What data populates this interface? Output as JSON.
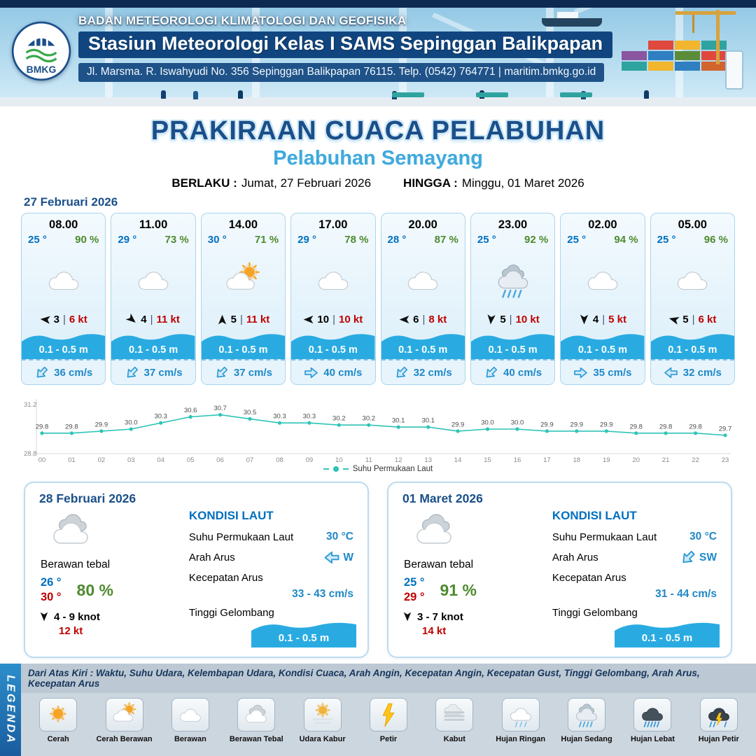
{
  "colors": {
    "dark_blue": "#1B4F8A",
    "light_blue": "#3FA9DC",
    "temp_blue": "#0070C0",
    "humidity_green": "#4E8A2E",
    "wind_red": "#C00000",
    "wave_blue": "#29ABE2",
    "chart_teal": "#2EC4B6"
  },
  "header": {
    "logo_text": "BMKG",
    "org_name": "BADAN METEOROLOGI KLIMATOLOGI DAN GEOFISIKA",
    "station_name": "Stasiun Meteorologi Kelas I SAMS Sepinggan Balikpapan",
    "address_line": "Jl. Marsma. R. Iswahyudi No. 356 Sepinggan Balikpapan 76115. Telp. (0542) 764771 | maritim.bmkg.go.id"
  },
  "title": {
    "main": "PRAKIRAAN CUACA PELABUHAN",
    "subtitle": "Pelabuhan Semayang",
    "berlaku_label": "BERLAKU :",
    "berlaku_value": "Jumat, 27 Februari 2026",
    "hingga_label": "HINGGA :",
    "hingga_value": "Minggu, 01 Maret 2026"
  },
  "day1": {
    "date": "27 Februari 2026",
    "hours": [
      {
        "time": "08.00",
        "temp": "25 °",
        "rh": "90 %",
        "icon": "berawan",
        "wind_deg": 185,
        "wind_num": "3",
        "wind_speed": "6 kt",
        "wave": "0.1 - 0.5 m",
        "cur_deg": 135,
        "cur": "36 cm/s"
      },
      {
        "time": "11.00",
        "temp": "29 °",
        "rh": "73 %",
        "icon": "berawan",
        "wind_deg": 40,
        "wind_num": "4",
        "wind_speed": "11 kt",
        "wave": "0.1 - 0.5 m",
        "cur_deg": 135,
        "cur": "37 cm/s"
      },
      {
        "time": "14.00",
        "temp": "30 °",
        "rh": "71 %",
        "icon": "cerah-berawan",
        "wind_deg": 270,
        "wind_num": "5",
        "wind_speed": "11 kt",
        "wave": "0.1 - 0.5 m",
        "cur_deg": 135,
        "cur": "37 cm/s"
      },
      {
        "time": "17.00",
        "temp": "29 °",
        "rh": "78 %",
        "icon": "berawan",
        "wind_deg": 180,
        "wind_num": "10",
        "wind_speed": "10 kt",
        "wave": "0.1 - 0.5 m",
        "cur_deg": 0,
        "cur": "40 cm/s"
      },
      {
        "time": "20.00",
        "temp": "28 °",
        "rh": "87 %",
        "icon": "berawan",
        "wind_deg": 180,
        "wind_num": "6",
        "wind_speed": "8 kt",
        "wave": "0.1 - 0.5 m",
        "cur_deg": 135,
        "cur": "32 cm/s"
      },
      {
        "time": "23.00",
        "temp": "25 °",
        "rh": "92 %",
        "icon": "hujan-sedang",
        "wind_deg": 95,
        "wind_num": "5",
        "wind_speed": "10 kt",
        "wave": "0.1 - 0.5 m",
        "cur_deg": 135,
        "cur": "40 cm/s"
      },
      {
        "time": "02.00",
        "temp": "25 °",
        "rh": "94 %",
        "icon": "berawan",
        "wind_deg": 90,
        "wind_num": "4",
        "wind_speed": "5 kt",
        "wave": "0.1 - 0.5 m",
        "cur_deg": 0,
        "cur": "35 cm/s"
      },
      {
        "time": "05.00",
        "temp": "25 °",
        "rh": "96 %",
        "icon": "berawan",
        "wind_deg": 195,
        "wind_num": "5",
        "wind_speed": "6 kt",
        "wave": "0.1 - 0.5 m",
        "cur_deg": 180,
        "cur": "32 cm/s"
      }
    ]
  },
  "chart_data": {
    "type": "line",
    "x": [
      "00",
      "01",
      "02",
      "03",
      "04",
      "05",
      "06",
      "07",
      "08",
      "09",
      "10",
      "11",
      "12",
      "13",
      "14",
      "15",
      "16",
      "17",
      "18",
      "19",
      "20",
      "21",
      "22",
      "23"
    ],
    "values": [
      29.8,
      29.8,
      29.9,
      30.0,
      30.3,
      30.6,
      30.7,
      30.5,
      30.3,
      30.3,
      30.2,
      30.2,
      30.1,
      30.1,
      29.9,
      30.0,
      30.0,
      29.9,
      29.9,
      29.9,
      29.8,
      29.8,
      29.8,
      29.7
    ],
    "ylim": [
      28.8,
      31.2
    ],
    "series_name": "Suhu Permukaan Laut",
    "line_color": "#2EC4B6",
    "legend_position": "bottom",
    "grid": false
  },
  "day_summaries": [
    {
      "date": "28 Februari 2026",
      "icon": "berawan-tebal",
      "condition": "Berawan tebal",
      "temp_min": "26 °",
      "temp_max": "30 °",
      "rh": "80 %",
      "wind_deg": 90,
      "wind_range": "4  - 9 knot",
      "gust": "12 kt",
      "sea": {
        "heading": "KONDISI LAUT",
        "sst_label": "Suhu Permukaan Laut",
        "sst": "30 °C",
        "dir_label": "Arah Arus",
        "dir": "W",
        "dir_deg": 180,
        "speed_label": "Kecepatan Arus",
        "speed": "33  - 43 cm/s",
        "wave_label": "Tinggi Gelombang",
        "wave": "0.1 - 0.5 m"
      }
    },
    {
      "date": "01 Maret 2026",
      "icon": "berawan-tebal",
      "condition": "Berawan tebal",
      "temp_min": "25 °",
      "temp_max": "29 °",
      "rh": "91 %",
      "wind_deg": 90,
      "wind_range": "3  - 7 knot",
      "gust": "14 kt",
      "sea": {
        "heading": "KONDISI LAUT",
        "sst_label": "Suhu Permukaan Laut",
        "sst": "30 °C",
        "dir_label": "Arah Arus",
        "dir": "SW",
        "dir_deg": 135,
        "speed_label": "Kecepatan Arus",
        "speed": "31  - 44 cm/s",
        "wave_label": "Tinggi Gelombang",
        "wave": "0.1 - 0.5 m"
      }
    }
  ],
  "legend": {
    "band_text": "LEGENDA",
    "note": "Dari Atas Kiri : Waktu, Suhu Udara, Kelembapan Udara, Kondisi Cuaca, Arah Angin, Kecepatan Angin, Kecepatan Gust, Tinggi Gelombang, Arah Arus, Kecepatan Arus",
    "items": [
      {
        "icon": "cerah",
        "label": "Cerah"
      },
      {
        "icon": "cerah-berawan",
        "label": "Cerah Berawan"
      },
      {
        "icon": "berawan",
        "label": "Berawan"
      },
      {
        "icon": "berawan-tebal",
        "label": "Berawan Tebal"
      },
      {
        "icon": "udara-kabur",
        "label": "Udara Kabur"
      },
      {
        "icon": "petir",
        "label": "Petir"
      },
      {
        "icon": "kabut",
        "label": "Kabut"
      },
      {
        "icon": "hujan-ringan",
        "label": "Hujan Ringan"
      },
      {
        "icon": "hujan-sedang",
        "label": "Hujan Sedang"
      },
      {
        "icon": "hujan-lebat",
        "label": "Hujan Lebat"
      },
      {
        "icon": "hujan-petir",
        "label": "Hujan Petir"
      }
    ]
  }
}
